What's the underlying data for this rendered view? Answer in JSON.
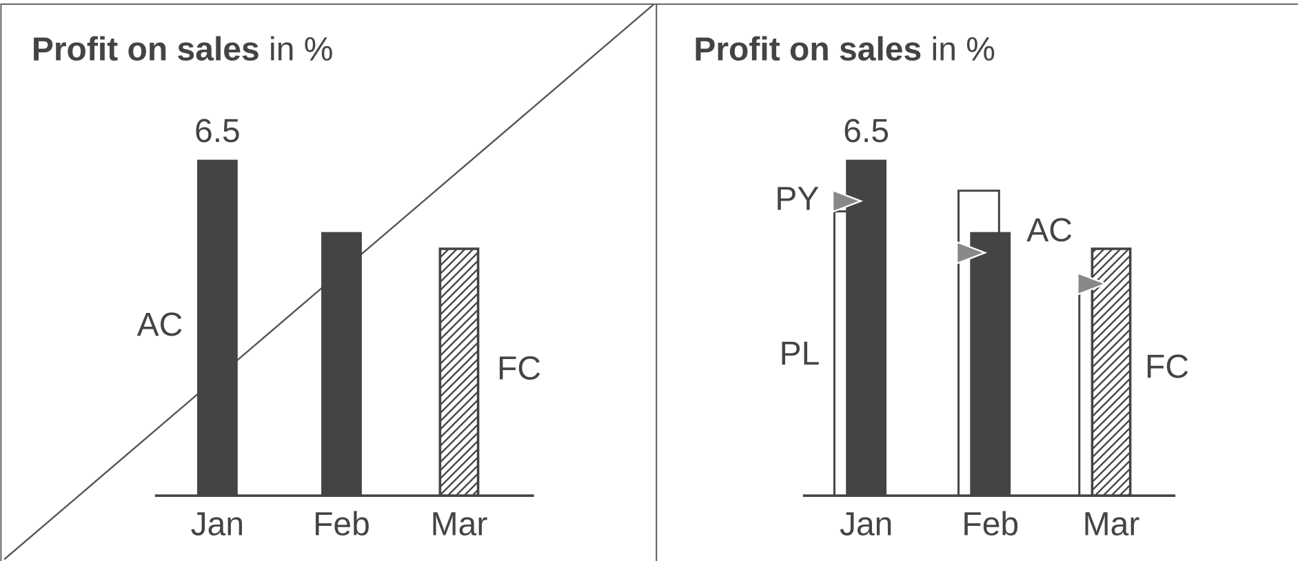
{
  "chart_data": [
    {
      "type": "bar",
      "title": "Profit on sales",
      "subtitle": "in %",
      "categories": [
        "Jan",
        "Feb",
        "Mar"
      ],
      "series": [
        {
          "name": "AC",
          "color": "#444444",
          "values": [
            6.5,
            5.1,
            null
          ]
        },
        {
          "name": "FC",
          "color": "#444444",
          "values": [
            null,
            null,
            4.8
          ]
        }
      ]
    },
    {
      "type": "bar",
      "title": "Profit on sales",
      "subtitle": "in %",
      "categories": [
        "Jan",
        "Feb",
        "Mar"
      ],
      "series": [
        {
          "name": "AC",
          "color": "#444444",
          "values": [
            6.5,
            5.1,
            null
          ]
        },
        {
          "name": "FC",
          "color": "#444444",
          "values": [
            null,
            null,
            4.8
          ]
        },
        {
          "name": "PL",
          "color": "#444444",
          "values": [
            5.5,
            5.9,
            4.0
          ]
        },
        {
          "name": "PY",
          "color": "#888888",
          "values": [
            5.7,
            4.7,
            4.1
          ]
        }
      ]
    }
  ]
}
